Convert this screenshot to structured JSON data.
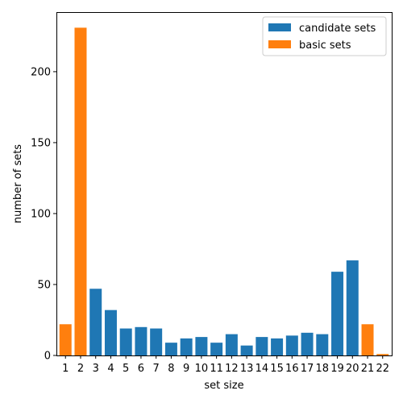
{
  "chart_data": {
    "type": "bar",
    "title": "",
    "xlabel": "set size",
    "ylabel": "number of sets",
    "ylim": [
      0,
      242
    ],
    "yticks": [
      0,
      50,
      100,
      150,
      200
    ],
    "categories": [
      "1",
      "2",
      "3",
      "4",
      "5",
      "6",
      "7",
      "8",
      "9",
      "10",
      "11",
      "12",
      "13",
      "14",
      "15",
      "16",
      "17",
      "18",
      "19",
      "20",
      "21",
      "22"
    ],
    "values": [
      22,
      231,
      47,
      32,
      19,
      20,
      19,
      9,
      12,
      13,
      9,
      15,
      7,
      13,
      12,
      14,
      16,
      15,
      59,
      67,
      22,
      1
    ],
    "bar_series": [
      "basic sets",
      "basic sets",
      "candidate sets",
      "candidate sets",
      "candidate sets",
      "candidate sets",
      "candidate sets",
      "candidate sets",
      "candidate sets",
      "candidate sets",
      "candidate sets",
      "candidate sets",
      "candidate sets",
      "candidate sets",
      "candidate sets",
      "candidate sets",
      "candidate sets",
      "candidate sets",
      "candidate sets",
      "candidate sets",
      "basic sets",
      "basic sets"
    ],
    "series": [
      {
        "name": "candidate sets",
        "color": "#1f77b4"
      },
      {
        "name": "basic sets",
        "color": "#ff7f0e"
      }
    ],
    "legend_position": "top-right",
    "grid": false
  }
}
